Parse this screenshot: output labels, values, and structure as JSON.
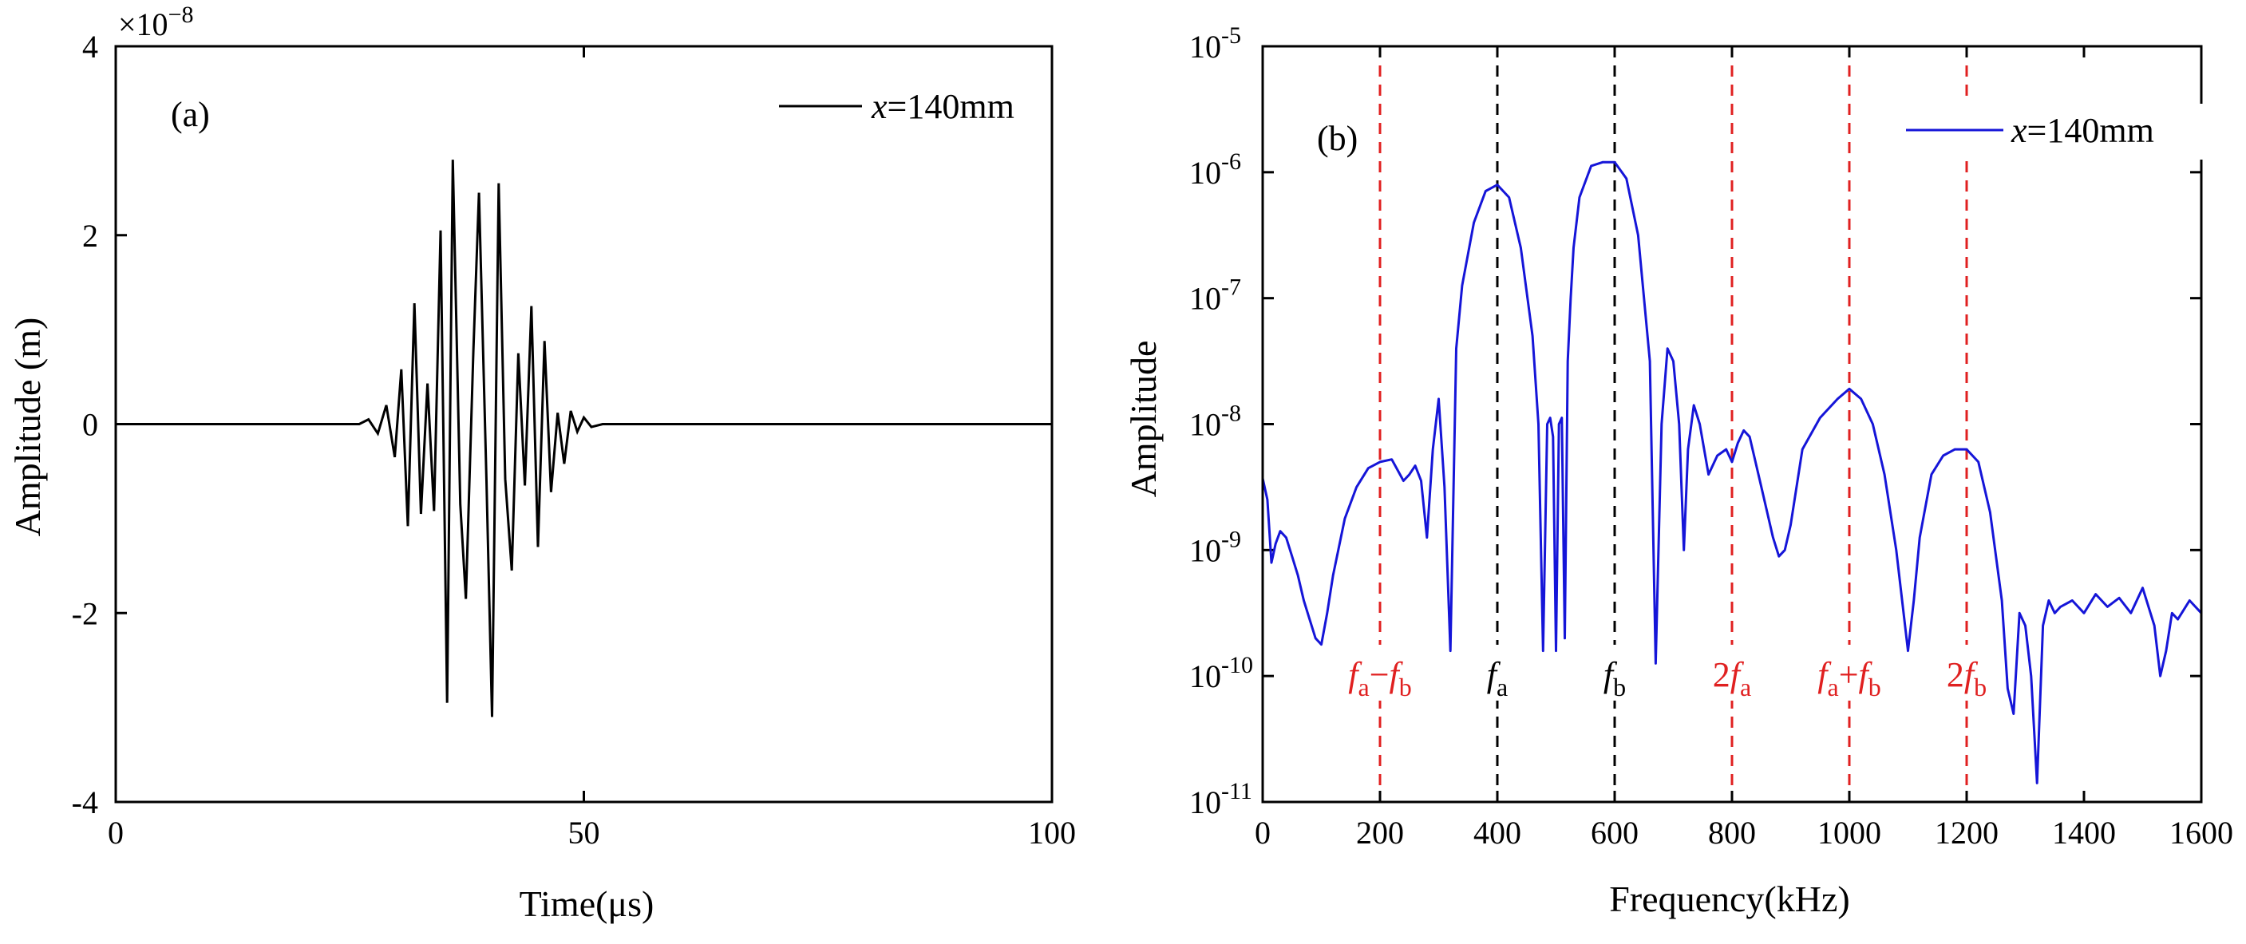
{
  "chart_data": [
    {
      "panel": "(a)",
      "type": "line",
      "xlabel": "Time(μs)",
      "ylabel": "Amplitude (m)",
      "xlim": [
        0,
        100
      ],
      "ylim": [
        -4,
        4
      ],
      "xticks": [
        0,
        50,
        100
      ],
      "yticks": [
        -4,
        -2,
        0,
        2,
        4
      ],
      "y_multiplier": "×10",
      "y_multiplier_exp": "−8",
      "legend": {
        "var": "x",
        "text": "=140mm",
        "position": "top-right"
      },
      "series": [
        {
          "name": "x=140mm",
          "color": "#000000",
          "x": [
            0,
            26.0,
            27.0,
            28.0,
            28.9,
            29.8,
            30.5,
            31.2,
            31.9,
            32.6,
            33.3,
            34.0,
            34.7,
            35.4,
            36.0,
            36.8,
            37.4,
            38.2,
            38.8,
            39.6,
            40.2,
            40.9,
            41.6,
            42.3,
            43.0,
            43.7,
            44.4,
            45.1,
            45.8,
            46.5,
            47.2,
            47.9,
            48.6,
            49.3,
            50.0,
            50.8,
            52.0,
            100
          ],
          "y": [
            0,
            0,
            0.05,
            -0.1,
            0.2,
            -0.35,
            0.58,
            -1.08,
            1.28,
            -0.95,
            0.43,
            -0.92,
            2.05,
            -2.95,
            2.8,
            -0.85,
            -1.85,
            0.78,
            2.45,
            -0.6,
            -3.1,
            2.55,
            -0.58,
            -1.55,
            0.75,
            -0.65,
            1.25,
            -1.3,
            0.88,
            -0.72,
            0.12,
            -0.42,
            0.14,
            -0.08,
            0.07,
            -0.03,
            0,
            0
          ]
        }
      ]
    },
    {
      "panel": "(b)",
      "type": "line",
      "xlabel": "Frequency(kHz)",
      "ylabel": "Amplitude",
      "xlim": [
        0,
        1600
      ],
      "ylim_log10": [
        -11,
        -5
      ],
      "xticks": [
        0,
        200,
        400,
        600,
        800,
        1000,
        1200,
        1400,
        1600
      ],
      "ytick_base": "10",
      "ytick_exponents": [
        "-11",
        "-10",
        "-9",
        "-8",
        "-7",
        "-6",
        "-5"
      ],
      "legend": {
        "var": "x",
        "text": "=140mm",
        "position": "top-right"
      },
      "series": [
        {
          "name": "x=140mm",
          "color": "#1515d8",
          "x": [
            0,
            8,
            15,
            22,
            30,
            40,
            50,
            60,
            70,
            80,
            90,
            100,
            110,
            120,
            140,
            160,
            180,
            200,
            220,
            240,
            250,
            260,
            270,
            280,
            290,
            300,
            310,
            320,
            330,
            340,
            360,
            380,
            400,
            420,
            440,
            460,
            470,
            478,
            485,
            490,
            495,
            500,
            505,
            510,
            515,
            520,
            525,
            530,
            540,
            560,
            580,
            600,
            620,
            640,
            660,
            670,
            680,
            690,
            700,
            710,
            718,
            725,
            735,
            745,
            760,
            775,
            790,
            800,
            810,
            820,
            830,
            850,
            870,
            880,
            890,
            900,
            920,
            950,
            980,
            1000,
            1020,
            1040,
            1060,
            1080,
            1100,
            1110,
            1120,
            1140,
            1160,
            1180,
            1200,
            1220,
            1240,
            1260,
            1270,
            1280,
            1290,
            1300,
            1310,
            1320,
            1330,
            1340,
            1350,
            1360,
            1380,
            1400,
            1420,
            1440,
            1460,
            1480,
            1500,
            1520,
            1530,
            1540,
            1550,
            1560,
            1580,
            1600
          ],
          "ylog": [
            -8.43,
            -8.6,
            -9.1,
            -8.95,
            -8.85,
            -8.9,
            -9.05,
            -9.2,
            -9.4,
            -9.55,
            -9.7,
            -9.75,
            -9.5,
            -9.2,
            -8.75,
            -8.5,
            -8.35,
            -8.3,
            -8.28,
            -8.45,
            -8.4,
            -8.33,
            -8.45,
            -8.9,
            -8.2,
            -7.8,
            -8.5,
            -9.8,
            -7.4,
            -6.9,
            -6.4,
            -6.15,
            -6.1,
            -6.2,
            -6.6,
            -7.3,
            -8.0,
            -9.8,
            -8.0,
            -7.95,
            -8.1,
            -9.8,
            -8.0,
            -7.95,
            -9.7,
            -7.5,
            -7.0,
            -6.6,
            -6.2,
            -5.95,
            -5.92,
            -5.92,
            -6.05,
            -6.5,
            -7.5,
            -9.9,
            -8.0,
            -7.4,
            -7.5,
            -8.0,
            -9.0,
            -8.2,
            -7.85,
            -8.0,
            -8.4,
            -8.25,
            -8.2,
            -8.3,
            -8.15,
            -8.05,
            -8.1,
            -8.5,
            -8.9,
            -9.05,
            -9.0,
            -8.8,
            -8.2,
            -7.95,
            -7.8,
            -7.72,
            -7.8,
            -8.0,
            -8.4,
            -9.0,
            -9.8,
            -9.4,
            -8.9,
            -8.4,
            -8.25,
            -8.2,
            -8.2,
            -8.3,
            -8.7,
            -9.4,
            -10.1,
            -10.3,
            -9.5,
            -9.6,
            -10.0,
            -10.85,
            -9.6,
            -9.4,
            -9.5,
            -9.45,
            -9.4,
            -9.5,
            -9.35,
            -9.45,
            -9.38,
            -9.5,
            -9.3,
            -9.6,
            -10.0,
            -9.8,
            -9.5,
            -9.55,
            -9.4,
            -9.5
          ]
        }
      ],
      "markers": [
        {
          "x": 200,
          "color": "#e02020",
          "a": "f",
          "as": "a",
          "op": "−",
          "b": "f",
          "bs": "b"
        },
        {
          "x": 400,
          "color": "#000000",
          "a": "f",
          "as": "a",
          "op": "",
          "b": "",
          "bs": ""
        },
        {
          "x": 600,
          "color": "#000000",
          "a": "f",
          "as": "b",
          "op": "",
          "b": "",
          "bs": ""
        },
        {
          "x": 800,
          "color": "#e02020",
          "pre": "2",
          "a": "f",
          "as": "a",
          "op": "",
          "b": "",
          "bs": ""
        },
        {
          "x": 1000,
          "color": "#e02020",
          "a": "f",
          "as": "a",
          "op": "+",
          "b": "f",
          "bs": "b"
        },
        {
          "x": 1200,
          "color": "#e02020",
          "pre": "2",
          "a": "f",
          "as": "b",
          "op": "",
          "b": "",
          "bs": ""
        }
      ]
    }
  ]
}
